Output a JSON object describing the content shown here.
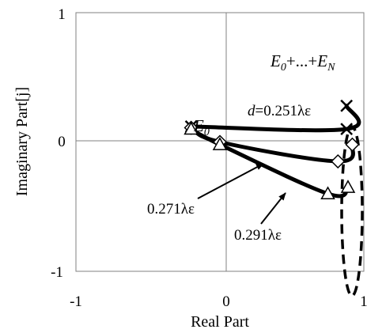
{
  "chart_data": {
    "type": "line",
    "xlabel": "Real Part",
    "ylabel": "Imaginary Part[j]",
    "xlim": [
      -1,
      1
    ],
    "ylim": [
      -1,
      1
    ],
    "x_ticks": [
      "-1",
      "0",
      "1"
    ],
    "y_ticks": [
      "1",
      "0",
      "-1"
    ],
    "grid": false,
    "zero_lines": true,
    "legend": "none",
    "line_color": "#000000",
    "series": [
      {
        "name": "d=0.251λε",
        "marker": "x",
        "x": [
          -0.2,
          0.88,
          0.88
        ],
        "y": [
          0.12,
          0.1,
          0.28
        ]
      },
      {
        "name": "0.271λε",
        "marker": "diamond",
        "x": [
          -0.2,
          0.0,
          0.82,
          0.92
        ],
        "y": [
          0.11,
          0.0,
          -0.15,
          -0.02
        ]
      },
      {
        "name": "0.291λε",
        "marker": "triangle",
        "x": [
          -0.2,
          0.0,
          0.75,
          0.89
        ],
        "y": [
          0.1,
          -0.02,
          -0.4,
          -0.35
        ]
      }
    ],
    "annotations": {
      "e0_label": "E",
      "e0_sub": "0",
      "sum_label_main": "E",
      "sum_label_sub0": "0",
      "sum_label_mid": "+...+",
      "sum_label_end": "E",
      "sum_label_subN": "N",
      "d_prefix": "d",
      "d_value": "=0.251λε",
      "label_271": "0.271λε",
      "label_291": "0.291λε"
    }
  }
}
